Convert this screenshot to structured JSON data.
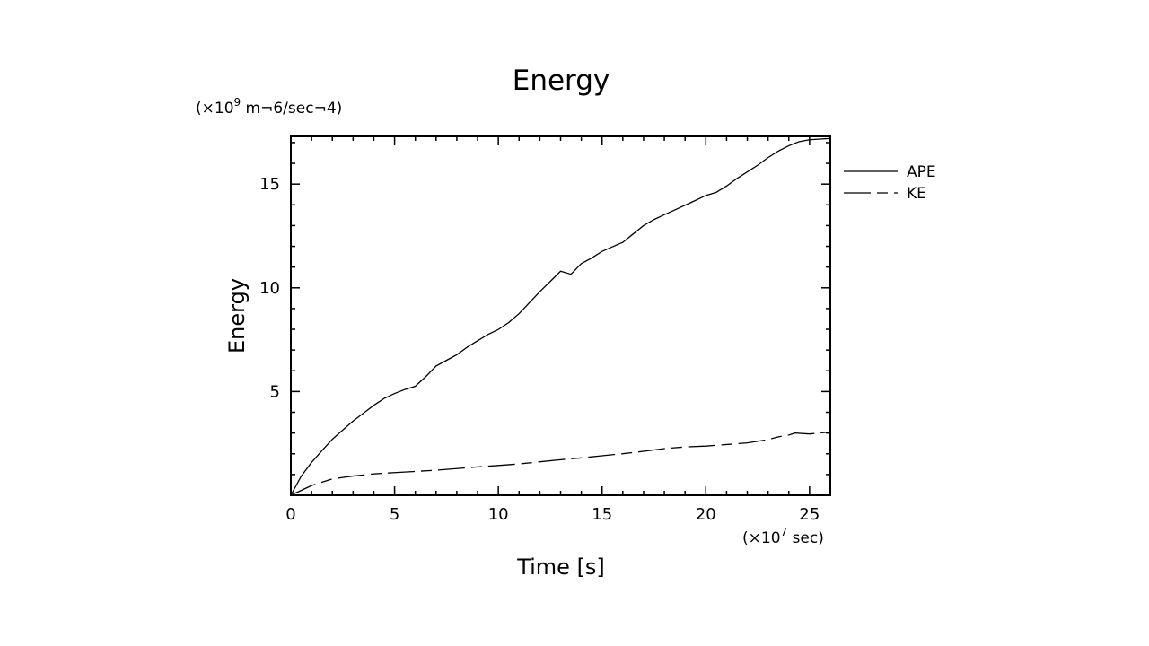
{
  "chart_data": {
    "type": "line",
    "title": "Energy",
    "xlabel": "Time [s]",
    "ylabel": "Energy",
    "x_multiplier": {
      "prefix": "(×10",
      "exp": "7",
      "suffix": " sec)"
    },
    "y_multiplier": {
      "prefix": "(×10",
      "exp": "9",
      "suffix": " m¬6/sec¬4)"
    },
    "xlim": [
      0,
      26
    ],
    "ylim": [
      0,
      17.3
    ],
    "x_ticks": [
      0,
      5,
      10,
      15,
      20,
      25
    ],
    "y_ticks": [
      5,
      10,
      15
    ],
    "grid": false,
    "legend_position": "right",
    "series": [
      {
        "name": "APE",
        "style": "solid",
        "color": "#000000",
        "x": [
          0,
          0.5,
          1,
          1.5,
          2,
          2.5,
          3,
          3.5,
          4,
          4.5,
          5,
          5.5,
          6,
          6.5,
          7,
          7.5,
          8,
          8.5,
          9,
          9.5,
          10,
          10.5,
          11,
          11.5,
          12,
          12.5,
          13,
          13.5,
          14,
          14.5,
          15,
          15.5,
          16,
          16.5,
          17,
          17.5,
          18,
          18.5,
          19,
          19.5,
          20,
          20.5,
          21,
          21.5,
          22,
          22.5,
          23,
          23.5,
          24,
          24.5,
          25,
          25.5,
          26
        ],
        "values": [
          0,
          0.9,
          1.55,
          2.1,
          2.65,
          3.1,
          3.55,
          3.95,
          4.35,
          4.7,
          4.95,
          5.15,
          5.3,
          5.75,
          6.25,
          6.5,
          6.75,
          7.1,
          7.4,
          7.7,
          7.95,
          8.3,
          8.75,
          9.3,
          9.85,
          10.35,
          10.85,
          10.7,
          11.2,
          11.45,
          11.75,
          11.95,
          12.15,
          12.55,
          12.95,
          13.25,
          13.5,
          13.75,
          14.0,
          14.25,
          14.5,
          14.65,
          14.95,
          15.3,
          15.6,
          15.9,
          16.25,
          16.55,
          16.8,
          17.0,
          17.1,
          17.15,
          17.2
        ]
      },
      {
        "name": "KE",
        "style": "dashed",
        "color": "#000000",
        "x": [
          0,
          1,
          2,
          3,
          4,
          5,
          6,
          7,
          8,
          9,
          10,
          11,
          12,
          13,
          14,
          15,
          16,
          17,
          18,
          19,
          20,
          21,
          22,
          23,
          23.5,
          24,
          24.3,
          25,
          26
        ],
        "values": [
          0,
          0.45,
          0.75,
          0.88,
          0.98,
          1.05,
          1.12,
          1.2,
          1.3,
          1.4,
          1.48,
          1.56,
          1.66,
          1.75,
          1.82,
          1.9,
          1.98,
          2.08,
          2.2,
          2.28,
          2.33,
          2.42,
          2.52,
          2.7,
          2.85,
          2.95,
          3.05,
          3.0,
          3.05
        ]
      }
    ]
  }
}
